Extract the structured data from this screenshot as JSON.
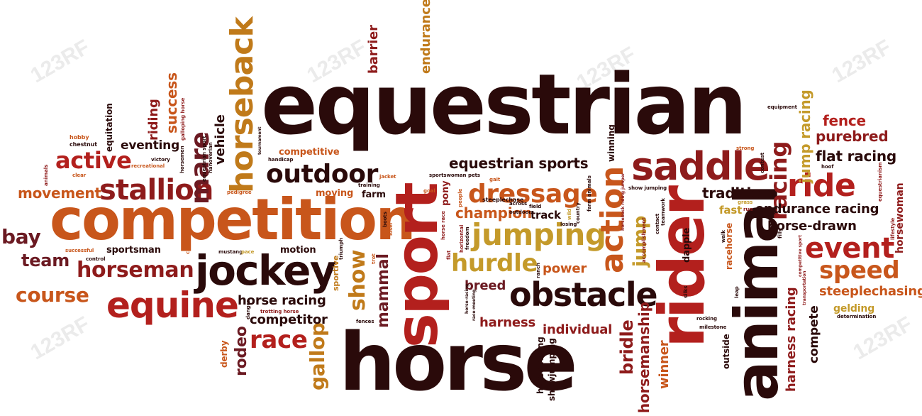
{
  "words": {
    "equestrian": "equestrian",
    "horse": "horse",
    "competition": "competition",
    "sport": "sport",
    "rider": "rider",
    "animal": "animal",
    "horseback": "horseback",
    "saddle": "saddle",
    "jockey": "jockey",
    "obstacle": "obstacle",
    "dressage": "dressage",
    "jumping": "jumping",
    "equine": "equine",
    "stallion": "stallion",
    "outdoor": "outdoor",
    "horseman": "horseman",
    "action": "action",
    "ride": "ride",
    "event": "event",
    "speed": "speed",
    "course": "course",
    "active": "active",
    "movement": "movement",
    "bay": "bay",
    "team": "team",
    "mare": "mare",
    "race": "race",
    "gallop": "gallop",
    "rodeo": "rodeo",
    "hurdle": "hurdle",
    "champion": "champion",
    "equestrian_sports": "equestrian sports",
    "flat_racing": "flat racing",
    "purebred": "purebred",
    "fence": "fence",
    "racing": "racing",
    "jump_racing": "jump racing",
    "tradition": "tradition",
    "endurance_racing": "endurance racing",
    "horse_drawn": "horse-drawn",
    "steeplechasing": "steeplechasing",
    "harness_racing": "harness racing",
    "horse_racing": "horse racing",
    "competitor": "competitor",
    "harness": "harness",
    "individual": "individual",
    "power": "power",
    "breed": "breed",
    "bridle": "bridle",
    "horsemanship": "horsemanship",
    "winner": "winner",
    "show": "show",
    "mammal": "mammal",
    "jump": "jump",
    "barrier": "barrier",
    "endurance": "endurance",
    "eventing": "eventing",
    "riding": "riding",
    "success": "success",
    "vehicle": "vehicle",
    "equitation": "equitation",
    "sportsman": "sportsman",
    "motion": "motion",
    "moving": "moving",
    "farm": "farm",
    "competitive": "competitive",
    "track": "track",
    "fast": "fast",
    "compete": "compete",
    "gelding": "gelding",
    "horsewoman": "horsewoman",
    "derby": "derby",
    "outside": "outside",
    "racehorse": "racehorse",
    "dapple": "dapple",
    "winning": "winning",
    "horse_riding": "horse riding",
    "showjumping": "showjumping",
    "pony": "pony",
    "sportive": "sportive",
    "hobby": "hobby",
    "chestnut": "chestnut",
    "galloping_horse": "galloping horse",
    "steeplechase": "steeplechase",
    "trotting_horse": "trotting horse",
    "pedigree": "pedigree",
    "victory": "victory",
    "recreational": "recreational",
    "horsemen": "horsemen",
    "equestrian_sport": "equestrian sport",
    "hanoverian": "hanoverian",
    "handicap": "handicap",
    "tournament": "tournament",
    "training": "training",
    "jacket": "jacket",
    "sportswoman": "sportswoman",
    "pets": "pets",
    "gait": "gait",
    "goal": "goal",
    "across": "across",
    "field": "field",
    "outdoors": "outdoors",
    "wild": "wild",
    "losing": "losing",
    "country": "country",
    "farm_animals": "farm animals",
    "horseback_riding_jumper": "horseback riding jumper",
    "show_jumping": "show jumping",
    "teamwork": "teamwork",
    "accomplishment": "accomplishment",
    "contact": "contact",
    "strong": "strong",
    "equipment": "equipment",
    "grass": "grass",
    "run": "run",
    "hoof": "hoof",
    "contest": "contest",
    "equestrianism": "equestrianism",
    "filly": "filly",
    "lifestyle": "lifestyle",
    "walk": "walk",
    "competitive_sport": "competitive sport",
    "leap": "leap",
    "transportation": "transportation",
    "determination": "determination",
    "rocking": "rocking",
    "milestone": "milestone",
    "silks": "silks",
    "successful": "successful",
    "mustang": "mustang",
    "canter": "canter",
    "pace": "pace",
    "triumph": "triumph",
    "trot": "trot",
    "fences": "fences",
    "race_meeting": "race-meeting",
    "horse_racing_small": "horse-racing",
    "danger": "danger",
    "clear": "clear",
    "control": "control",
    "animals": "animals",
    "ranch": "ranch",
    "flat": "flat",
    "horizontal": "horizontal",
    "freedom": "freedom",
    "people": "people",
    "boots": "boots",
    "loser": "loser",
    "horse_race": "horse race"
  },
  "watermark": "123RF",
  "colors": {
    "dark": "#2a0a0a",
    "maroon": "#6b1a22",
    "crimson": "#8e1b1b",
    "red": "#b3201d",
    "orange": "#c8561b",
    "amber": "#c07a1a",
    "gold": "#c49a2a",
    "brown": "#6e3a16"
  }
}
